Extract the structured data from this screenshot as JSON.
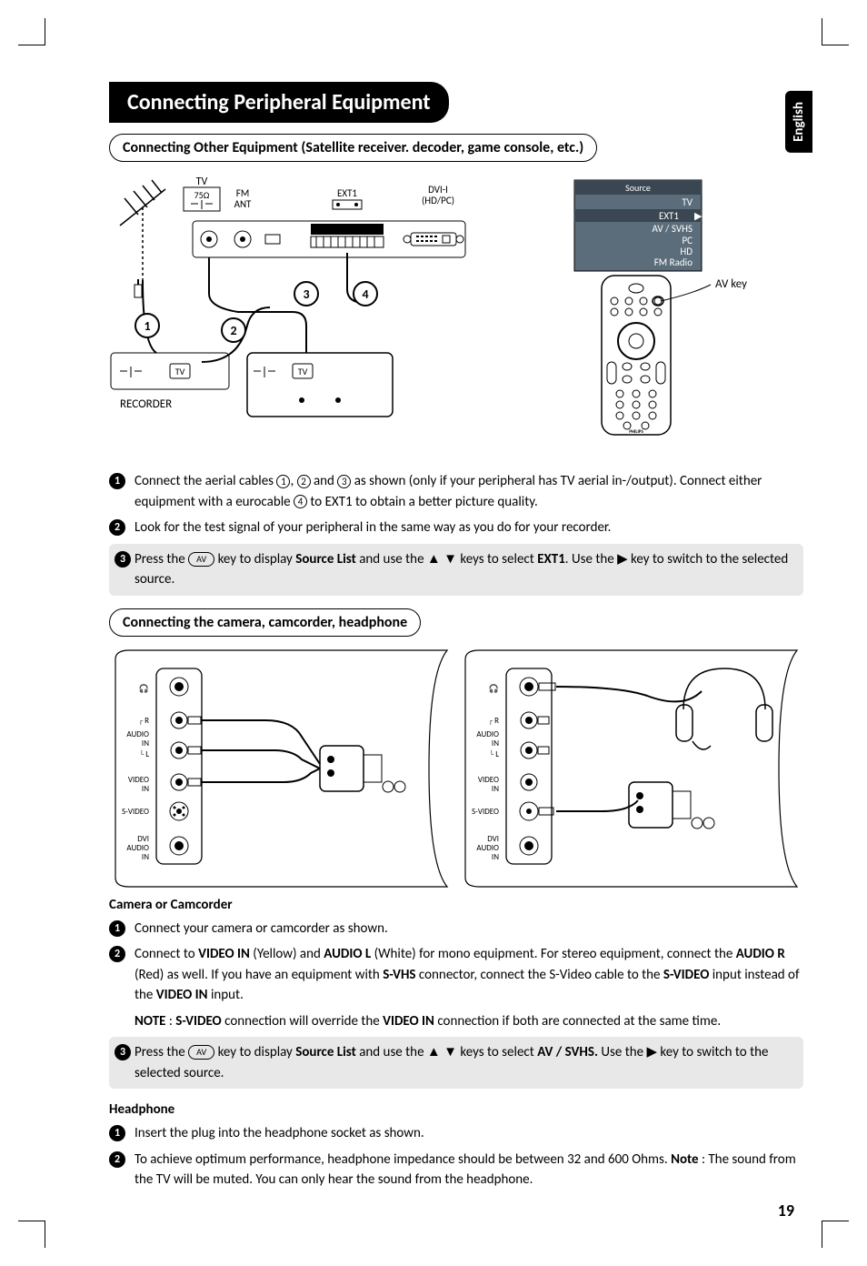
{
  "language_tab": "English",
  "page_title": "Connecting Peripheral Equipment",
  "subtitle1": "Connecting Other Equipment (Satellite receiver. decoder, game console, etc.)",
  "diagram1": {
    "tv_label": "TV",
    "impedance": "75Ω",
    "fm_ant": "FM\nANT",
    "ext1": "EXT1",
    "dvi": "DVI-I\n(HD/PC)",
    "recorder": "RECORDER",
    "source_menu": {
      "title": "Source",
      "items": [
        "TV",
        "EXT1",
        "AV / SVHS",
        "PC",
        "HD",
        "FM Radio"
      ],
      "selected_index": 1,
      "bg": "#5b6d7a",
      "sel_bg": "#3a4752"
    },
    "av_key_label": "AV key",
    "callouts": [
      "1",
      "2",
      "3",
      "4"
    ]
  },
  "steps1": [
    {
      "num": "1",
      "html": "Connect the aerial cables <c>1</c>, <c>2</c> and <c>3</c> as shown (only if your peripheral has TV aerial in-/output). Connect either equipment with a eurocable <c>4</c> to EXT1 to obtain a better picture quality."
    },
    {
      "num": "2",
      "html": "Look for the test signal of your peripheral in the same way as you do for your recorder."
    },
    {
      "num": "3",
      "grey": true,
      "html": "Press the <av>AV</av> key to display <b>Source List</b> and use the ▲ ▼ keys to select <b>EXT1</b>. Use the ▶ key to switch to the selected source."
    }
  ],
  "subtitle2": "Connecting the camera, camcorder, headphone",
  "side_jacks": [
    "",
    "R",
    "AUDIO IN",
    "L",
    "VIDEO IN",
    "S-VIDEO",
    "DVI AUDIO IN"
  ],
  "section_cam": {
    "heading": "Camera or Camcorder",
    "steps": [
      {
        "num": "1",
        "html": "Connect your camera or camcorder as shown."
      },
      {
        "num": "2",
        "html": "Connect to <b>VIDEO IN</b> (Yellow) and <b>AUDIO L</b> (White) for mono equipment. For stereo equipment, connect the <b>AUDIO R</b> (Red) as well. If you have an equipment with <b>S-VHS</b> connector, connect the S-Video cable to the <b>S-VIDEO</b> input instead of the <b>VIDEO IN</b> input."
      },
      {
        "note": true,
        "html": "<b>NOTE</b> : <b>S-VIDEO</b> connection will override the <b>VIDEO IN</b> connection if both are connected at the same time."
      },
      {
        "num": "3",
        "grey": true,
        "html": "Press the <av>AV</av> key to display <b>Source List</b> and  use the ▲ ▼ keys to select <b>AV / SVHS.</b> Use the ▶ key to switch to the selected source."
      }
    ]
  },
  "section_hp": {
    "heading": "Headphone",
    "steps": [
      {
        "num": "1",
        "html": "Insert the plug into the headphone socket as shown."
      },
      {
        "num": "2",
        "html": "To achieve optimum performance, headphone impedance should be between 32 and 600 Ohms. <b>Note</b> : The sound from the TV will be muted. You can only hear the sound from the headphone."
      }
    ]
  },
  "page_number": "19",
  "colors": {
    "grey_box": "#e8e8e8"
  }
}
